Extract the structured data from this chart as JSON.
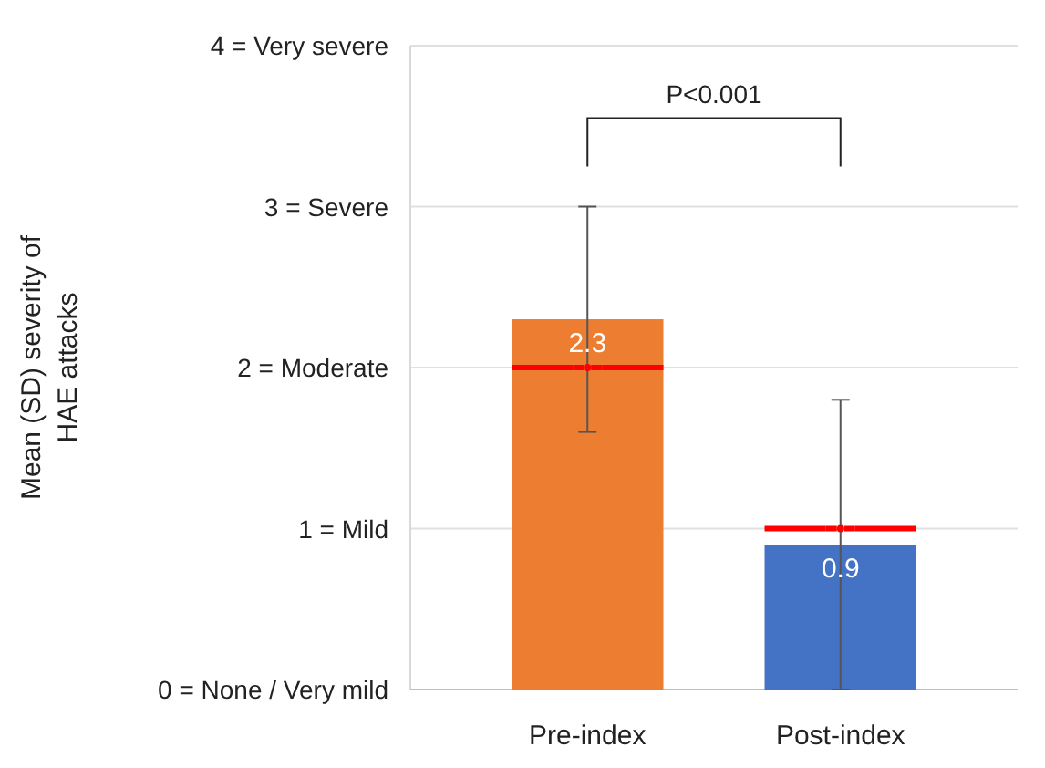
{
  "chart_data": {
    "type": "bar",
    "ylabel": "Mean (SD) severity of HAE attacks",
    "categories": [
      "Pre-index",
      "Post-index"
    ],
    "series": [
      {
        "values": [
          2.3,
          0.9
        ],
        "colors": [
          "#ed7d31",
          "#4472c4"
        ],
        "errors": [
          0.7,
          0.9
        ],
        "value_labels": [
          "2.3",
          "0.9"
        ]
      },
      {
        "type": "scatter",
        "x": [
          "Pre-index",
          "Post-index"
        ],
        "values": [
          2.0,
          1.0
        ],
        "color": "#ff0000"
      }
    ],
    "ylim": [
      0,
      4
    ],
    "yticks": [
      {
        "value": 0,
        "label": "0 = None / Very mild"
      },
      {
        "value": 1,
        "label": "1 = Mild"
      },
      {
        "value": 2,
        "label": "2 = Moderate"
      },
      {
        "value": 3,
        "label": "3 = Severe"
      },
      {
        "value": 4,
        "label": "4 = Very severe"
      }
    ],
    "grid": "y",
    "annotations": [
      "P<0.001"
    ]
  }
}
